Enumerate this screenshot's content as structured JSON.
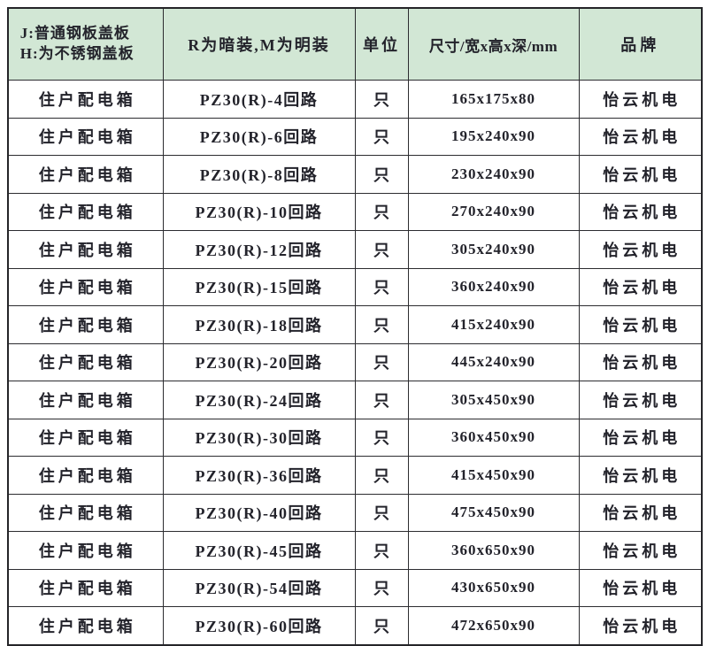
{
  "colors": {
    "header_bg": "#d2e7d5",
    "border": "#2c2c30",
    "text": "#23232b",
    "page_bg": "#ffffff"
  },
  "table": {
    "headers": {
      "col1_line1": "J:普通钢板盖板",
      "col1_line2": "H:为不锈钢盖板",
      "col2": "R为暗装,M为明装",
      "col3": "单位",
      "col4": "尺寸/宽x高x深/mm",
      "col5": "品牌"
    },
    "rows": [
      {
        "product": "住户配电箱",
        "model": "PZ30(R)-4回路",
        "unit": "只",
        "size": "165x175x80",
        "brand": "怡云机电"
      },
      {
        "product": "住户配电箱",
        "model": "PZ30(R)-6回路",
        "unit": "只",
        "size": "195x240x90",
        "brand": "怡云机电"
      },
      {
        "product": "住户配电箱",
        "model": "PZ30(R)-8回路",
        "unit": "只",
        "size": "230x240x90",
        "brand": "怡云机电"
      },
      {
        "product": "住户配电箱",
        "model": "PZ30(R)-10回路",
        "unit": "只",
        "size": "270x240x90",
        "brand": "怡云机电"
      },
      {
        "product": "住户配电箱",
        "model": "PZ30(R)-12回路",
        "unit": "只",
        "size": "305x240x90",
        "brand": "怡云机电"
      },
      {
        "product": "住户配电箱",
        "model": "PZ30(R)-15回路",
        "unit": "只",
        "size": "360x240x90",
        "brand": "怡云机电"
      },
      {
        "product": "住户配电箱",
        "model": "PZ30(R)-18回路",
        "unit": "只",
        "size": "415x240x90",
        "brand": "怡云机电"
      },
      {
        "product": "住户配电箱",
        "model": "PZ30(R)-20回路",
        "unit": "只",
        "size": "445x240x90",
        "brand": "怡云机电"
      },
      {
        "product": "住户配电箱",
        "model": "PZ30(R)-24回路",
        "unit": "只",
        "size": "305x450x90",
        "brand": "怡云机电"
      },
      {
        "product": "住户配电箱",
        "model": "PZ30(R)-30回路",
        "unit": "只",
        "size": "360x450x90",
        "brand": "怡云机电"
      },
      {
        "product": "住户配电箱",
        "model": "PZ30(R)-36回路",
        "unit": "只",
        "size": "415x450x90",
        "brand": "怡云机电"
      },
      {
        "product": "住户配电箱",
        "model": "PZ30(R)-40回路",
        "unit": "只",
        "size": "475x450x90",
        "brand": "怡云机电"
      },
      {
        "product": "住户配电箱",
        "model": "PZ30(R)-45回路",
        "unit": "只",
        "size": "360x650x90",
        "brand": "怡云机电"
      },
      {
        "product": "住户配电箱",
        "model": "PZ30(R)-54回路",
        "unit": "只",
        "size": "430x650x90",
        "brand": "怡云机电"
      },
      {
        "product": "住户配电箱",
        "model": "PZ30(R)-60回路",
        "unit": "只",
        "size": "472x650x90",
        "brand": "怡云机电"
      }
    ]
  }
}
